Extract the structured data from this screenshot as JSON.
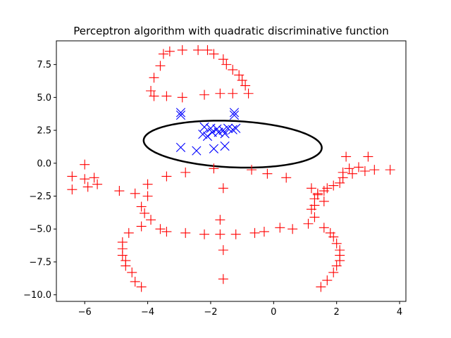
{
  "chart_data": {
    "type": "scatter",
    "title": "Perceptron algorithm with quadratic discriminative function",
    "xlabel": "",
    "ylabel": "",
    "xlim": [
      -6.9,
      4.2
    ],
    "ylim": [
      -10.5,
      9.3
    ],
    "xticks": [
      -6,
      -4,
      -2,
      0,
      2,
      4
    ],
    "xtick_labels": [
      "−6",
      "−4",
      "−2",
      "0",
      "2",
      "4"
    ],
    "yticks": [
      -10.0,
      -7.5,
      -5.0,
      -2.5,
      0.0,
      2.5,
      5.0,
      7.5
    ],
    "ytick_labels": [
      "−10.0",
      "−7.5",
      "−5.0",
      "−2.5",
      "0.0",
      "2.5",
      "5.0",
      "7.5"
    ],
    "grid": false,
    "legend": "none",
    "series": [
      {
        "marker": "plus",
        "color": "#ff0000",
        "points": [
          [
            -3.6,
            7.4
          ],
          [
            -3.5,
            8.3
          ],
          [
            -3.3,
            8.5
          ],
          [
            -2.9,
            8.6
          ],
          [
            -2.4,
            8.6
          ],
          [
            -2.1,
            8.6
          ],
          [
            -1.9,
            8.3
          ],
          [
            -1.6,
            7.9
          ],
          [
            -1.5,
            7.5
          ],
          [
            -1.3,
            7.1
          ],
          [
            -1.1,
            6.7
          ],
          [
            -1.0,
            6.3
          ],
          [
            -0.9,
            5.9
          ],
          [
            -3.8,
            6.5
          ],
          [
            -3.9,
            5.5
          ],
          [
            -3.8,
            5.1
          ],
          [
            -3.4,
            5.1
          ],
          [
            -2.9,
            5.0
          ],
          [
            -2.2,
            5.2
          ],
          [
            -1.7,
            5.3
          ],
          [
            -1.3,
            5.3
          ],
          [
            -0.8,
            5.3
          ],
          [
            -6.4,
            -1.0
          ],
          [
            -6.4,
            -2.0
          ],
          [
            -6.0,
            -0.1
          ],
          [
            -6.0,
            -1.2
          ],
          [
            -5.9,
            -1.8
          ],
          [
            -5.7,
            -1.1
          ],
          [
            -5.6,
            -1.6
          ],
          [
            -4.9,
            -2.1
          ],
          [
            -4.4,
            -2.3
          ],
          [
            -4.0,
            -1.6
          ],
          [
            -4.0,
            -2.5
          ],
          [
            -3.4,
            -1.0
          ],
          [
            -2.8,
            -0.7
          ],
          [
            -1.9,
            -0.4
          ],
          [
            -1.6,
            -1.9
          ],
          [
            -0.7,
            -0.5
          ],
          [
            -0.2,
            -0.8
          ],
          [
            0.4,
            -1.1
          ],
          [
            -4.2,
            -3.3
          ],
          [
            -4.1,
            -3.8
          ],
          [
            -3.9,
            -4.3
          ],
          [
            -4.2,
            -4.8
          ],
          [
            -4.6,
            -5.3
          ],
          [
            -3.6,
            -5.0
          ],
          [
            -3.4,
            -5.2
          ],
          [
            -2.8,
            -5.3
          ],
          [
            -2.2,
            -5.4
          ],
          [
            -1.7,
            -5.4
          ],
          [
            -1.2,
            -5.4
          ],
          [
            -0.6,
            -5.3
          ],
          [
            -0.3,
            -5.2
          ],
          [
            0.2,
            -4.9
          ],
          [
            0.6,
            -5.0
          ],
          [
            1.1,
            -4.6
          ],
          [
            1.6,
            -4.9
          ],
          [
            1.8,
            -5.3
          ],
          [
            -1.7,
            -4.3
          ],
          [
            -1.6,
            -6.6
          ],
          [
            -1.6,
            -8.8
          ],
          [
            -4.8,
            -6.0
          ],
          [
            -4.8,
            -6.5
          ],
          [
            -4.8,
            -7.0
          ],
          [
            -4.7,
            -7.4
          ],
          [
            -4.7,
            -7.8
          ],
          [
            -4.5,
            -8.3
          ],
          [
            -4.4,
            -9.0
          ],
          [
            -4.2,
            -9.4
          ],
          [
            1.2,
            -1.9
          ],
          [
            1.3,
            -2.7
          ],
          [
            1.4,
            -2.4
          ],
          [
            1.6,
            -2.1
          ],
          [
            1.7,
            -1.9
          ],
          [
            1.9,
            -1.7
          ],
          [
            2.1,
            -1.5
          ],
          [
            2.2,
            -1.1
          ],
          [
            2.2,
            -0.7
          ],
          [
            2.4,
            -0.4
          ],
          [
            2.3,
            0.5
          ],
          [
            2.5,
            -0.8
          ],
          [
            2.7,
            -0.3
          ],
          [
            2.9,
            -0.6
          ],
          [
            3.0,
            0.5
          ],
          [
            3.2,
            -0.5
          ],
          [
            3.7,
            -0.5
          ],
          [
            1.2,
            -3.5
          ],
          [
            1.3,
            -3.2
          ],
          [
            1.3,
            -4.1
          ],
          [
            1.4,
            -2.3
          ],
          [
            1.6,
            -2.9
          ],
          [
            1.9,
            -5.6
          ],
          [
            2.0,
            -6.1
          ],
          [
            2.1,
            -6.6
          ],
          [
            2.1,
            -7.0
          ],
          [
            2.1,
            -7.4
          ],
          [
            2.0,
            -7.8
          ],
          [
            1.9,
            -8.3
          ],
          [
            1.7,
            -8.9
          ],
          [
            1.5,
            -9.4
          ]
        ]
      },
      {
        "marker": "x",
        "color": "#0000ff",
        "points": [
          [
            -2.95,
            3.85
          ],
          [
            -2.95,
            3.65
          ],
          [
            -1.25,
            3.85
          ],
          [
            -1.25,
            3.65
          ],
          [
            -2.2,
            2.75
          ],
          [
            -2.0,
            2.65
          ],
          [
            -1.8,
            2.6
          ],
          [
            -1.6,
            2.5
          ],
          [
            -1.45,
            2.65
          ],
          [
            -1.3,
            2.55
          ],
          [
            -1.2,
            2.65
          ],
          [
            -2.25,
            2.2
          ],
          [
            -2.1,
            2.05
          ],
          [
            -1.95,
            2.35
          ],
          [
            -1.75,
            2.35
          ],
          [
            -1.55,
            2.25
          ],
          [
            -2.95,
            1.2
          ],
          [
            -2.45,
            0.95
          ],
          [
            -1.9,
            1.1
          ],
          [
            -1.55,
            1.3
          ]
        ]
      }
    ],
    "decision_boundary": {
      "shape": "ellipse",
      "center": [
        -1.3,
        1.45
      ],
      "semi_axes": [
        2.85,
        1.75
      ],
      "rotation_deg": -9,
      "color": "#000000"
    }
  }
}
